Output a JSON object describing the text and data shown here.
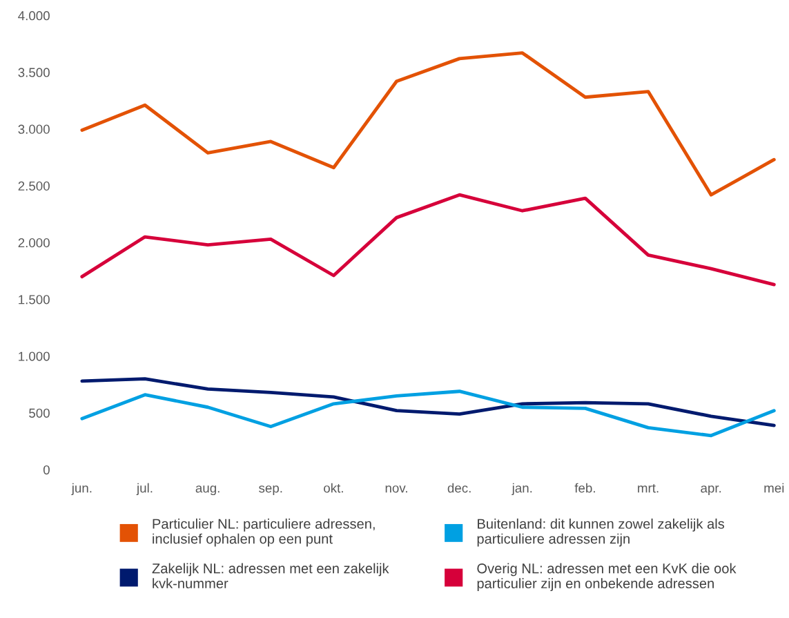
{
  "chart_data": {
    "type": "line",
    "categories": [
      "jun.",
      "jul.",
      "aug.",
      "sep.",
      "okt.",
      "nov.",
      "dec.",
      "jan.",
      "feb.",
      "mrt.",
      "apr.",
      "mei"
    ],
    "series": [
      {
        "name": "Particulier NL: particuliere adressen,\ninclusief ophalen op een punt",
        "color": "#e35205",
        "values": [
          2990,
          3210,
          2790,
          2890,
          2660,
          3420,
          3620,
          3670,
          3280,
          3330,
          2420,
          2730
        ]
      },
      {
        "name": "Zakelijk NL: adressen met een zakelijk\nkvk-nummer",
        "color": "#001a6e",
        "values": [
          780,
          800,
          710,
          680,
          640,
          520,
          490,
          580,
          590,
          580,
          470,
          390
        ]
      },
      {
        "name": "Buitenland: dit kunnen zowel zakelijk als\nparticuliere adressen zijn",
        "color": "#00a0e2",
        "values": [
          450,
          660,
          550,
          380,
          580,
          650,
          690,
          550,
          540,
          370,
          300,
          520
        ]
      },
      {
        "name": "Overig NL: adressen met een KvK die ook\nparticulier zijn en onbekende adressen",
        "color": "#d6003a",
        "values": [
          1700,
          2050,
          1980,
          2030,
          1710,
          2220,
          2420,
          2280,
          2390,
          1890,
          1770,
          1630
        ]
      }
    ],
    "ylim": [
      0,
      4000
    ],
    "yticks": [
      0,
      {
        "value": 500,
        "label": "500"
      },
      {
        "value": 1000,
        "label": "1.000"
      },
      {
        "value": 1500,
        "label": "1.500"
      },
      {
        "value": 2000,
        "label": "2.000"
      },
      {
        "value": 2500,
        "label": "2.500"
      },
      {
        "value": 3000,
        "label": "3.000"
      },
      {
        "value": 3500,
        "label": "3.500"
      },
      {
        "value": 4000,
        "label": "4.000"
      }
    ],
    "grid": false,
    "legend": "bottom",
    "marker": "none",
    "line_style": "solid"
  }
}
